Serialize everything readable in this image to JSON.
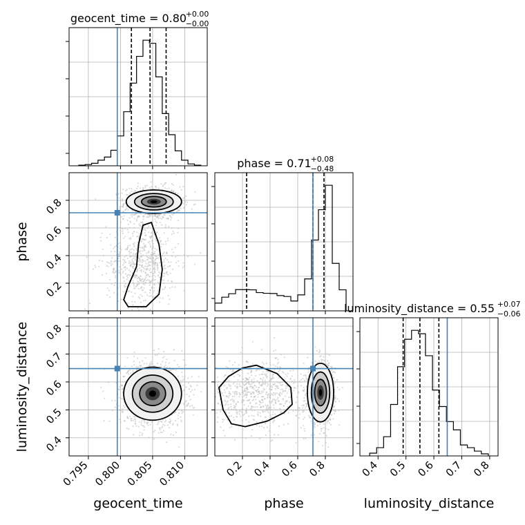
{
  "chart_data": {
    "type": "corner",
    "parameters": [
      "geocent_time",
      "phase",
      "luminosity_distance"
    ],
    "axis_labels": [
      "geocent_time",
      "phase",
      "luminosity_distance"
    ],
    "ranges": {
      "geocent_time": [
        0.792,
        0.8135
      ],
      "phase": [
        0.0,
        1.0
      ],
      "luminosity_distance": [
        0.335,
        0.83
      ]
    },
    "ticks": {
      "geocent_time": [
        "0.795",
        "0.800",
        "0.805",
        "0.810"
      ],
      "phase": [
        "0.2",
        "0.4",
        "0.6",
        "0.8"
      ],
      "luminosity_distance": [
        "0.4",
        "0.5",
        "0.6",
        "0.7",
        "0.8"
      ]
    },
    "tick_values": {
      "geocent_time": [
        0.795,
        0.8,
        0.805,
        0.81
      ],
      "phase": [
        0.2,
        0.4,
        0.6,
        0.8
      ],
      "luminosity_distance": [
        0.4,
        0.5,
        0.6,
        0.7,
        0.8
      ]
    },
    "titles": [
      {
        "param": "geocent_time",
        "label": "geocent_time = 0.80",
        "plus": "+0.00",
        "minus": "−0.00"
      },
      {
        "param": "phase",
        "label": "phase = 0.71",
        "plus": "+0.08",
        "minus": "−0.48"
      },
      {
        "param": "luminosity_distance",
        "label": "luminosity_distance = 0.55",
        "plus": "+0.07",
        "minus": "−0.06"
      }
    ],
    "truths": {
      "geocent_time": 0.7995,
      "phase": 0.71,
      "luminosity_distance": 0.648
    },
    "quantiles": {
      "geocent_time": [
        0.8017,
        0.8046,
        0.8071
      ],
      "phase": [
        0.23,
        0.71,
        0.79
      ],
      "luminosity_distance": [
        0.49,
        0.55,
        0.618
      ]
    },
    "histograms": {
      "geocent_time": {
        "edges": [
          0.7935,
          0.7945,
          0.7955,
          0.7965,
          0.7975,
          0.7985,
          0.7995,
          0.8005,
          0.8015,
          0.8025,
          0.8035,
          0.8045,
          0.8055,
          0.8065,
          0.8075,
          0.8085,
          0.8095,
          0.8105,
          0.8115,
          0.8125
        ],
        "counts": [
          1,
          2,
          4,
          9,
          14,
          25,
          48,
          87,
          133,
          176,
          202,
          197,
          143,
          84,
          50,
          24,
          9,
          3,
          1
        ]
      },
      "phase": {
        "edges": [
          0.0,
          0.05,
          0.1,
          0.15,
          0.2,
          0.25,
          0.3,
          0.35,
          0.4,
          0.45,
          0.5,
          0.55,
          0.6,
          0.65,
          0.7,
          0.75,
          0.8,
          0.85,
          0.9,
          0.95,
          1.0
        ],
        "counts": [
          34,
          60,
          75,
          93,
          93,
          92,
          80,
          77,
          76,
          67,
          63,
          43,
          70,
          140,
          310,
          443,
          550,
          208,
          92,
          0
        ]
      },
      "luminosity_distance": {
        "edges": [
          0.37,
          0.395,
          0.42,
          0.445,
          0.47,
          0.495,
          0.52,
          0.545,
          0.57,
          0.595,
          0.62,
          0.645,
          0.67,
          0.695,
          0.72,
          0.745,
          0.77,
          0.795
        ],
        "counts": [
          4,
          12,
          28,
          75,
          130,
          170,
          183,
          178,
          146,
          96,
          72,
          50,
          38,
          16,
          12,
          7,
          3
        ]
      }
    },
    "contour_levels": [
      "39.3%",
      "86.5%",
      "98.9%"
    ],
    "grid": true,
    "scatter_color": "#bbbbbb",
    "truth_color": "#4682b4",
    "hist_color": "#000000"
  }
}
